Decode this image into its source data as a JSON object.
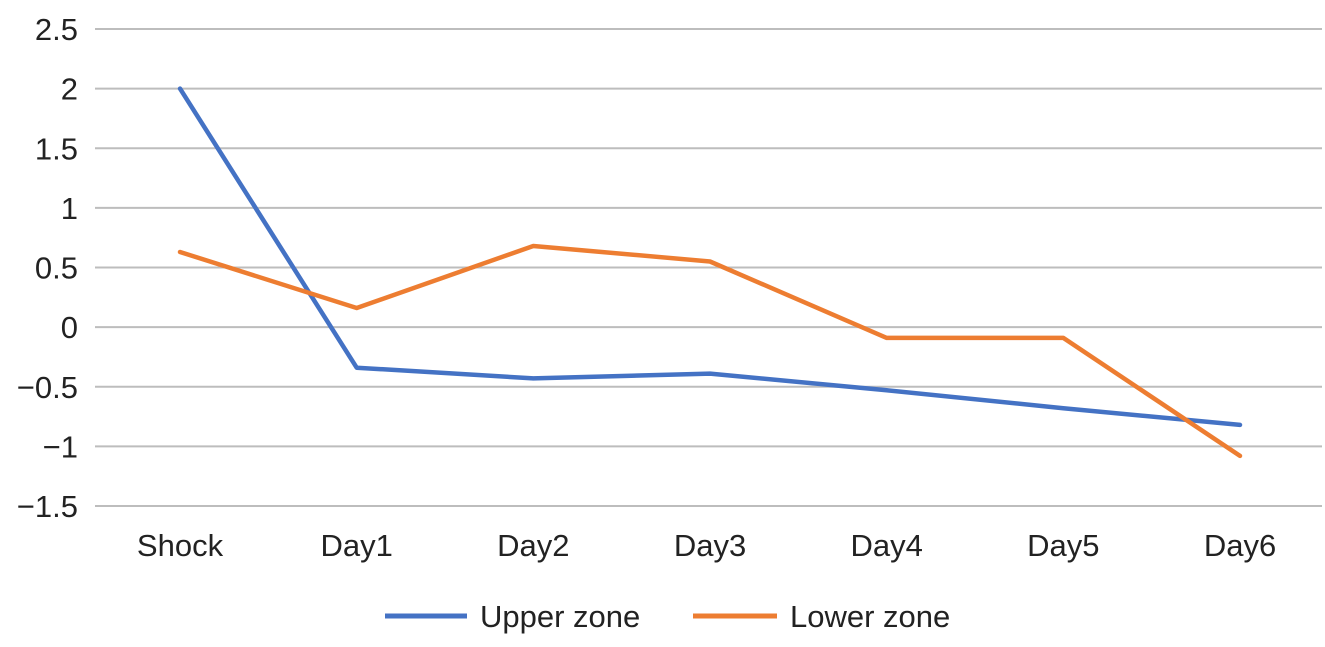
{
  "chart_data": {
    "type": "line",
    "title": "",
    "xlabel": "",
    "ylabel": "",
    "categories": [
      "Shock",
      "Day1",
      "Day2",
      "Day3",
      "Day4",
      "Day5",
      "Day6"
    ],
    "yticks": [
      "2.5",
      "2",
      "1.5",
      "1",
      "0.5",
      "0",
      "−0.5",
      "−1",
      "−1.5"
    ],
    "ytick_values": [
      2.5,
      2,
      1.5,
      1,
      0.5,
      0,
      -0.5,
      -1,
      -1.5
    ],
    "ylim": [
      -1.5,
      2.5
    ],
    "grid": true,
    "legend_position": "bottom",
    "series": [
      {
        "name": "Upper zone",
        "color": "#4472c4",
        "values": [
          2.0,
          -0.34,
          -0.43,
          -0.39,
          -0.53,
          -0.68,
          -0.82
        ]
      },
      {
        "name": "Lower zone",
        "color": "#ed7d31",
        "values": [
          0.63,
          0.16,
          0.68,
          0.55,
          -0.09,
          -0.09,
          -1.08
        ]
      }
    ]
  }
}
